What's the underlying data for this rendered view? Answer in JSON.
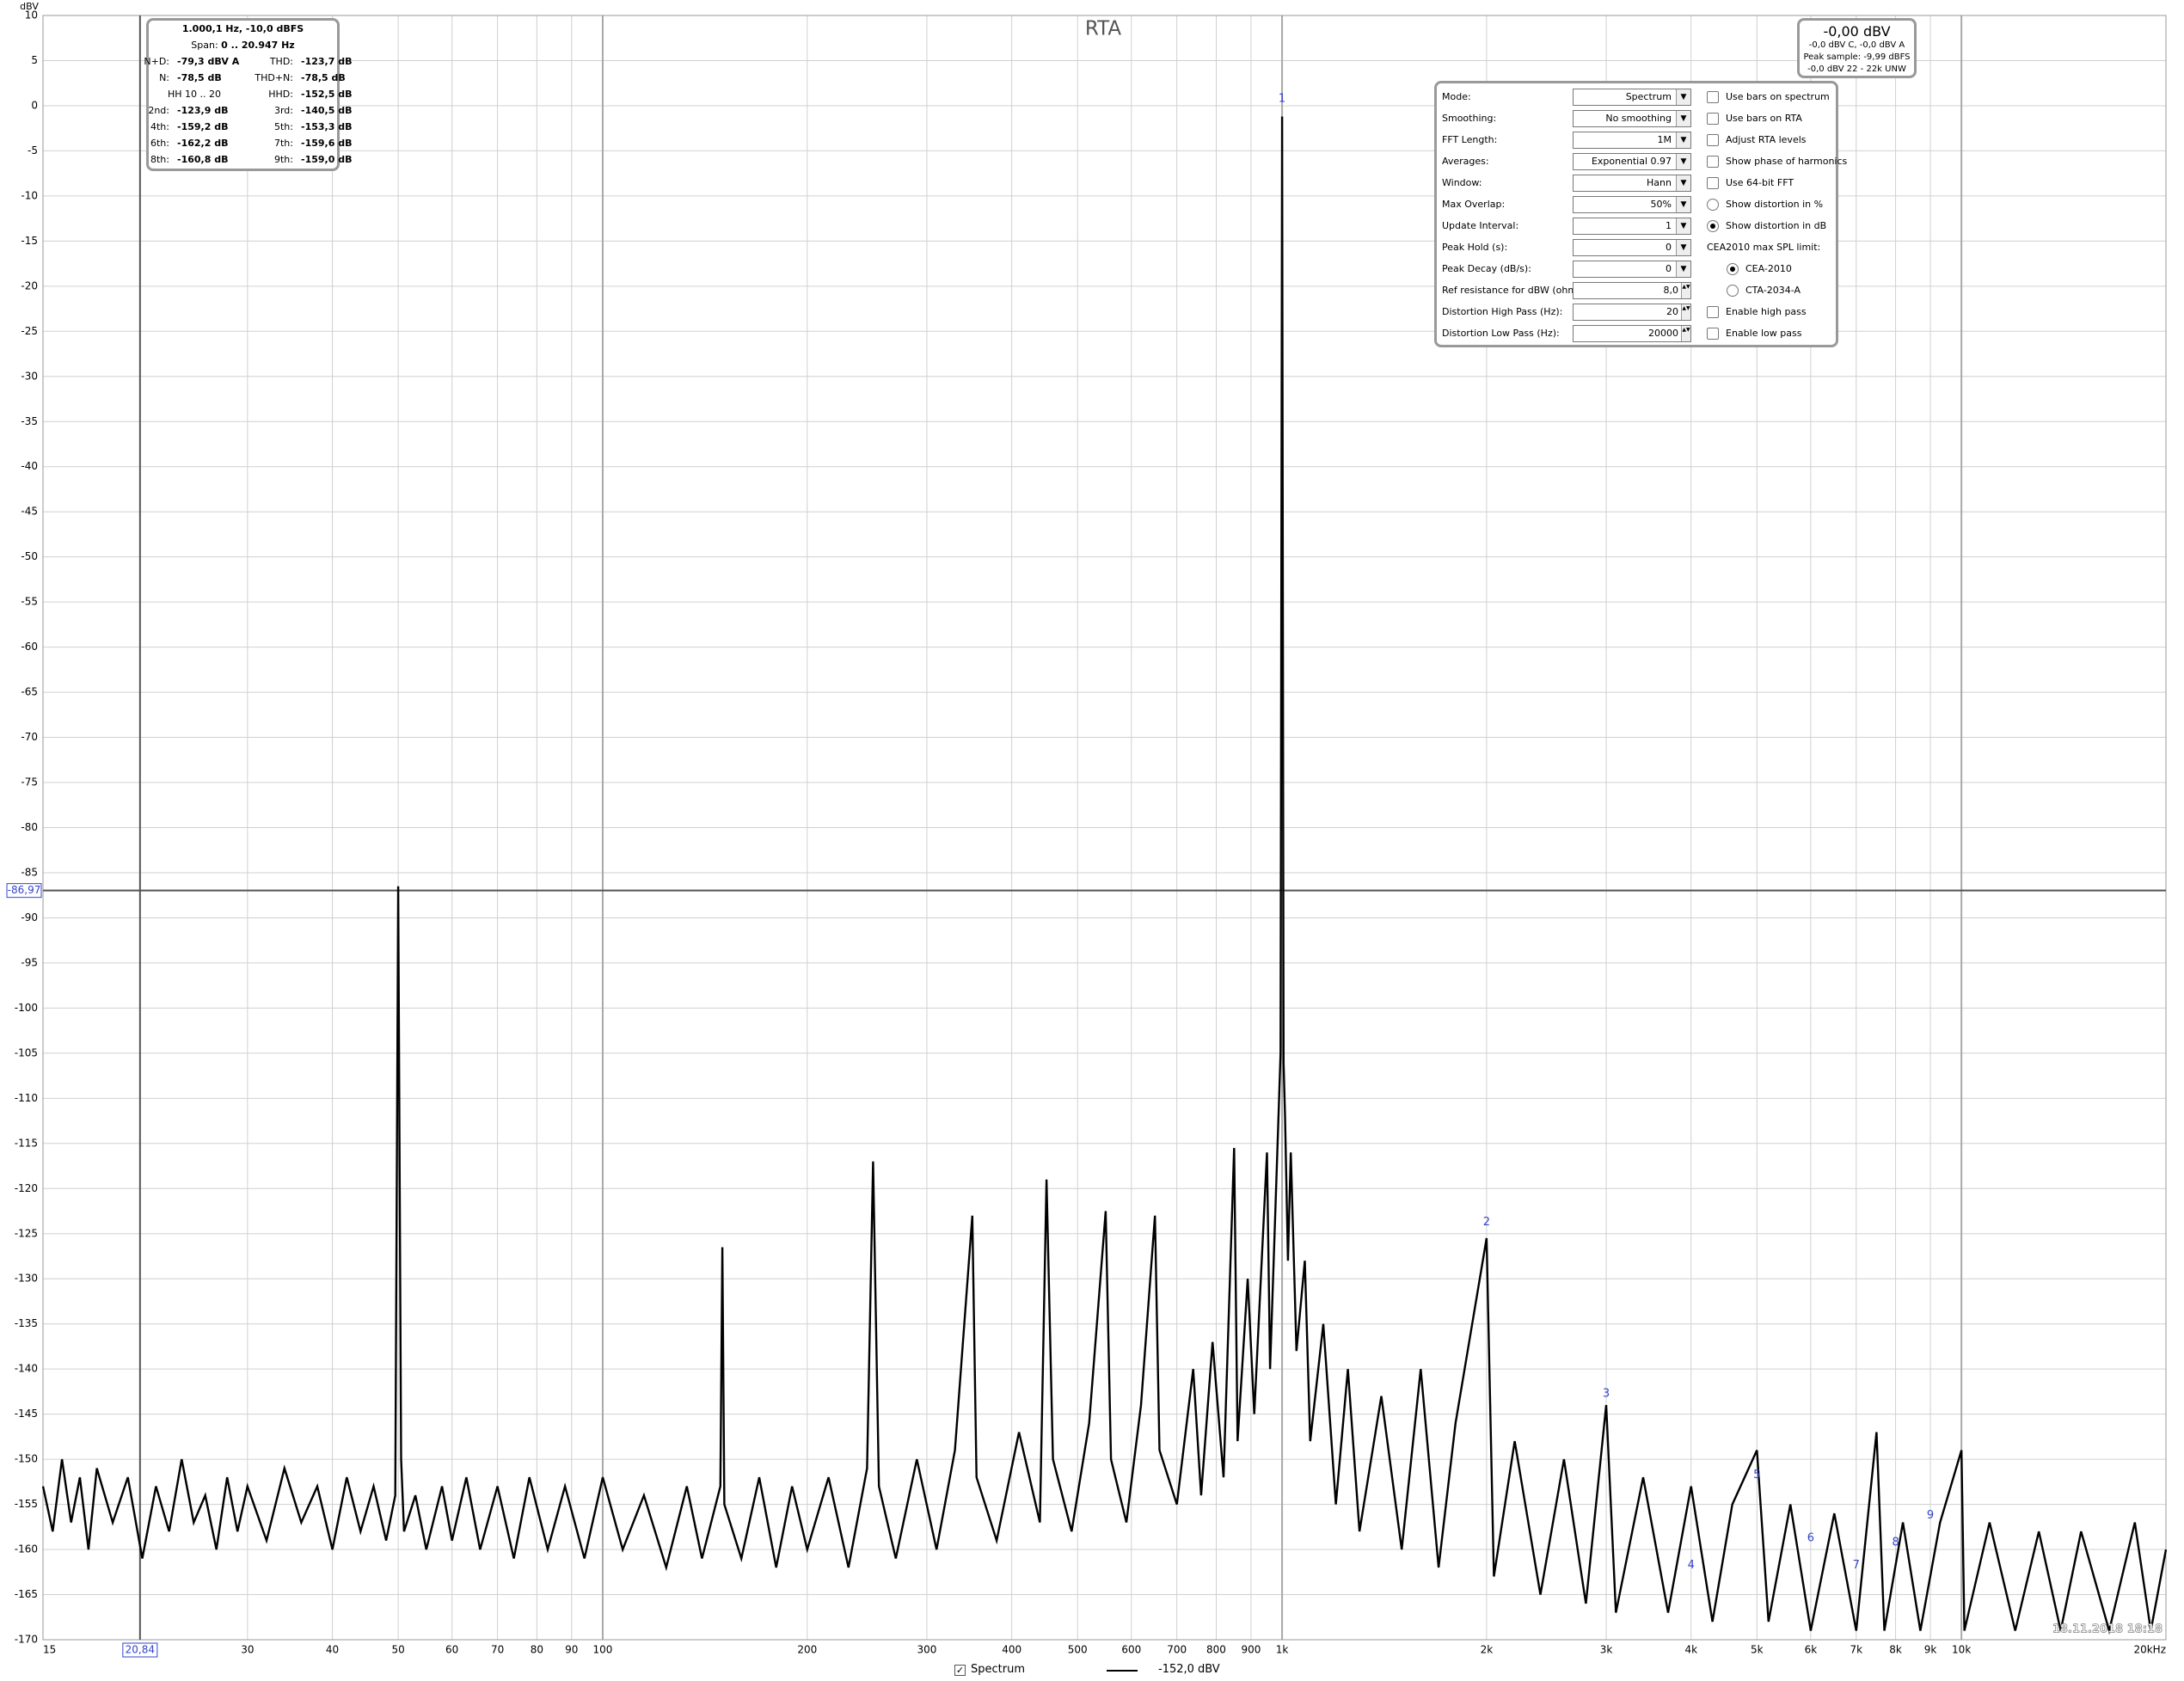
{
  "chart_data": {
    "type": "line",
    "title": "RTA",
    "y_unit": "dBV",
    "xscale": "log",
    "grid": true,
    "xlim": [
      15,
      20000
    ],
    "ylim": [
      -170,
      10
    ],
    "yticks": [
      10,
      5,
      0,
      -5,
      -10,
      -15,
      -20,
      -25,
      -30,
      -35,
      -40,
      -45,
      -50,
      -55,
      -60,
      -65,
      -70,
      -75,
      -80,
      -85,
      -90,
      -95,
      -100,
      -105,
      -110,
      -115,
      -120,
      -125,
      -130,
      -135,
      -140,
      -145,
      -150,
      -155,
      -160,
      -165,
      -170
    ],
    "xticks": [
      15,
      30,
      40,
      50,
      60,
      70,
      80,
      90,
      100,
      200,
      300,
      400,
      500,
      600,
      700,
      800,
      900,
      {
        "value": 1000,
        "label": "1k"
      },
      {
        "value": 2000,
        "label": "2k"
      },
      {
        "value": 3000,
        "label": "3k"
      },
      {
        "value": 4000,
        "label": "4k"
      },
      {
        "value": 5000,
        "label": "5k"
      },
      {
        "value": 6000,
        "label": "6k"
      },
      {
        "value": 7000,
        "label": "7k"
      },
      {
        "value": 8000,
        "label": "8k"
      },
      {
        "value": 9000,
        "label": "9k"
      },
      {
        "value": 10000,
        "label": "10k"
      },
      {
        "value": 20000,
        "label": "20kHz"
      }
    ],
    "series": [
      {
        "name": "Spectrum",
        "color": "#000000",
        "x": [
          15,
          15.5,
          16,
          16.5,
          17,
          17.5,
          18,
          19,
          20,
          21,
          22,
          23,
          24,
          25,
          26,
          27,
          28,
          29,
          30,
          32,
          34,
          36,
          38,
          40,
          42,
          44,
          46,
          48,
          49.5,
          50,
          50.5,
          51,
          53,
          55,
          58,
          60,
          63,
          66,
          70,
          74,
          78,
          83,
          88,
          94,
          100,
          107,
          115,
          124,
          133,
          140,
          149,
          150,
          151,
          160,
          170,
          180,
          190,
          200,
          215,
          230,
          245,
          250,
          255,
          270,
          290,
          310,
          330,
          350,
          355,
          380,
          410,
          440,
          450,
          460,
          490,
          520,
          550,
          560,
          590,
          620,
          650,
          660,
          700,
          740,
          760,
          790,
          820,
          850,
          860,
          890,
          910,
          950,
          960,
          980,
          990,
          995,
          1000,
          1005,
          1010,
          1020,
          1030,
          1050,
          1080,
          1100,
          1150,
          1200,
          1250,
          1300,
          1400,
          1500,
          1600,
          1700,
          1800,
          2000,
          2050,
          2200,
          2400,
          2600,
          2800,
          3000,
          3100,
          3400,
          3700,
          4000,
          4300,
          4600,
          5000,
          5200,
          5600,
          6000,
          6500,
          7000,
          7500,
          7700,
          8200,
          8700,
          9300,
          10000,
          10100,
          11000,
          12000,
          13000,
          14000,
          15000,
          16500,
          18000,
          19000,
          20000
        ],
        "values": [
          -153,
          -158,
          -150,
          -157,
          -152,
          -160,
          -151,
          -157,
          -152,
          -161,
          -153,
          -158,
          -150,
          -157,
          -154,
          -160,
          -152,
          -158,
          -153,
          -159,
          -151,
          -157,
          -153,
          -160,
          -152,
          -158,
          -153,
          -159,
          -154,
          -86.5,
          -150,
          -158,
          -154,
          -160,
          -153,
          -159,
          -152,
          -160,
          -153,
          -161,
          -152,
          -160,
          -153,
          -161,
          -152,
          -160,
          -154,
          -162,
          -153,
          -161,
          -153,
          -126.5,
          -155,
          -161,
          -152,
          -162,
          -153,
          -160,
          -152,
          -162,
          -151,
          -117,
          -153,
          -161,
          -150,
          -160,
          -149,
          -123,
          -152,
          -159,
          -147,
          -157,
          -119,
          -150,
          -158,
          -146,
          -122.5,
          -150,
          -157,
          -144,
          -123,
          -149,
          -155,
          -140,
          -154,
          -137,
          -152,
          -115.5,
          -148,
          -130,
          -145,
          -116,
          -140,
          -120,
          -110,
          -105,
          -1.2,
          -106,
          -112,
          -128,
          -116,
          -138,
          -128,
          -148,
          -135,
          -155,
          -140,
          -158,
          -143,
          -160,
          -140,
          -162,
          -146,
          -125.5,
          -163,
          -148,
          -165,
          -150,
          -166,
          -144,
          -167,
          -152,
          -167,
          -153,
          -168,
          -155,
          -149,
          -168,
          -155,
          -169,
          -156,
          -169,
          -147,
          -169,
          -157,
          -169,
          -157,
          -149,
          -169,
          -157,
          -169,
          -158,
          -169,
          -158,
          -169,
          -157,
          -169,
          -160
        ]
      }
    ],
    "cursor": {
      "x": 20.84,
      "x_label": "20,84",
      "y": -86.97,
      "y_label": "-86,97"
    },
    "harmonic_markers": [
      {
        "label": "1",
        "x": 1000,
        "y": 0
      },
      {
        "label": "2",
        "x": 2000,
        "y": -124.5
      },
      {
        "label": "3",
        "x": 3000,
        "y": -143.5
      },
      {
        "label": "4",
        "x": 4000,
        "y": -162.5
      },
      {
        "label": "5",
        "x": 5000,
        "y": -152.5
      },
      {
        "label": "6",
        "x": 6000,
        "y": -159.5
      },
      {
        "label": "7",
        "x": 7000,
        "y": -162.5
      },
      {
        "label": "8",
        "x": 8000,
        "y": -160
      },
      {
        "label": "9",
        "x": 9000,
        "y": -157
      }
    ],
    "legend_value": "-152,0 dBV",
    "timestamp": "18.11.2018 18:18"
  },
  "info_box": {
    "title": "1.000,1 Hz, -10,0 dBFS",
    "span_label": "Span:",
    "span_value": "0 .. 20.947 Hz",
    "rows": [
      [
        {
          "label": "N+D:",
          "value": "-79,3 dBV A"
        },
        {
          "label": "THD:",
          "value": "-123,7 dB"
        }
      ],
      [
        {
          "label": "N:",
          "value": "-78,5 dB"
        },
        {
          "label": "THD+N:",
          "value": "-78,5 dB"
        }
      ],
      [
        {
          "label": "HH 10 .. 20"
        },
        {
          "label": "HHD:",
          "value": "-152,5 dB"
        }
      ],
      [
        {
          "label": "2nd:",
          "value": "-123,9 dB"
        },
        {
          "label": "3rd:",
          "value": "-140,5 dB"
        }
      ],
      [
        {
          "label": "4th:",
          "value": "-159,2 dB"
        },
        {
          "label": "5th:",
          "value": "-153,3 dB"
        }
      ],
      [
        {
          "label": "6th:",
          "value": "-162,2 dB"
        },
        {
          "label": "7th:",
          "value": "-159,6 dB"
        }
      ],
      [
        {
          "label": "8th:",
          "value": "-160,8 dB"
        },
        {
          "label": "9th:",
          "value": "-159,0 dB"
        }
      ]
    ]
  },
  "status_box": {
    "level": "-0,00 dBV",
    "lines": [
      "-0,0 dBV C, -0,0 dBV A",
      "Peak sample: -9,99 dBFS",
      "-0,0 dBV 22 - 22k UNW"
    ]
  },
  "settings": {
    "fields": [
      {
        "label": "Mode:",
        "value": "Spectrum",
        "control": "dropdown"
      },
      {
        "label": "Smoothing:",
        "value": "No  smoothing",
        "control": "dropdown"
      },
      {
        "label": "FFT Length:",
        "value": "1M",
        "control": "dropdown"
      },
      {
        "label": "Averages:",
        "value": "Exponential 0.97",
        "control": "dropdown"
      },
      {
        "label": "Window:",
        "value": "Hann",
        "control": "dropdown"
      },
      {
        "label": "Max Overlap:",
        "value": "50%",
        "control": "dropdown"
      },
      {
        "label": "Update Interval:",
        "value": "1",
        "control": "dropdown"
      },
      {
        "label": "Peak Hold (s):",
        "value": "0",
        "control": "dropdown"
      },
      {
        "label": "Peak Decay (dB/s):",
        "value": "0",
        "control": "dropdown"
      },
      {
        "label": "Ref resistance for dBW (ohm):",
        "value": "8,0",
        "control": "spinner"
      },
      {
        "label": "Distortion High Pass (Hz):",
        "value": "20",
        "control": "spinner"
      },
      {
        "label": "Distortion Low Pass (Hz):",
        "value": "20000",
        "control": "spinner"
      }
    ],
    "options": [
      {
        "label": "Use bars on spectrum",
        "control": "checkbox",
        "checked": false
      },
      {
        "label": "Use bars on RTA",
        "control": "checkbox",
        "checked": false
      },
      {
        "label": "Adjust RTA levels",
        "control": "checkbox",
        "checked": false
      },
      {
        "label": "Show phase of harmonics",
        "control": "checkbox",
        "checked": false
      },
      {
        "label": "Use 64-bit FFT",
        "control": "checkbox",
        "checked": false
      },
      {
        "label": "Show distortion in %",
        "control": "radio",
        "checked": false
      },
      {
        "label": "Show distortion in dB",
        "control": "radio",
        "checked": true
      },
      {
        "label": "CEA2010 max SPL limit:",
        "control": "heading"
      },
      {
        "label": "CEA-2010",
        "control": "radio",
        "checked": true,
        "indent": true
      },
      {
        "label": "CTA-2034-A",
        "control": "radio",
        "checked": false,
        "indent": true
      },
      {
        "label": "Enable high pass",
        "control": "checkbox",
        "checked": false
      },
      {
        "label": "Enable low pass",
        "control": "checkbox",
        "checked": false
      }
    ]
  }
}
